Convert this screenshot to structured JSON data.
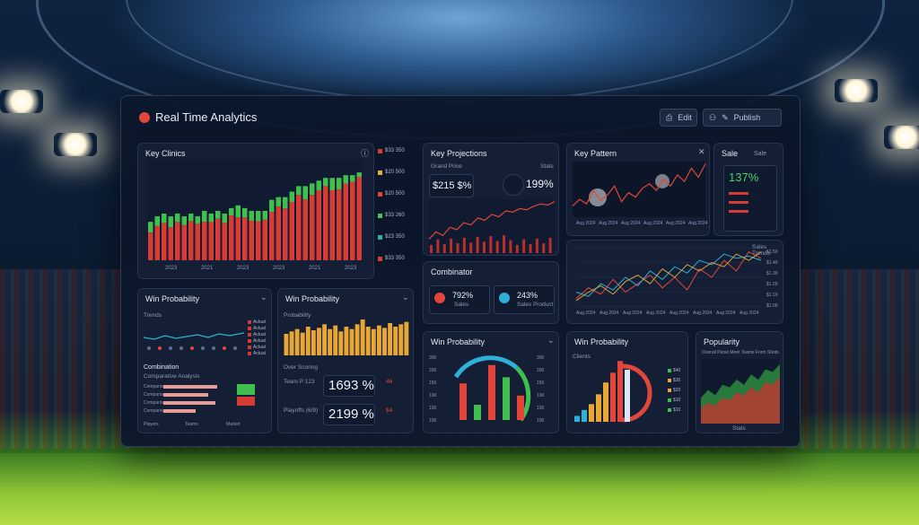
{
  "app": {
    "title": "Real Time Analytics"
  },
  "toolbar": {
    "btn1": "Edit",
    "btn2": "Publish"
  },
  "key_clinics": {
    "title": "Key Clinics",
    "legend": [
      "$33 350",
      "$20 500",
      "$20 500",
      "$33 260",
      "$23 350",
      "$33 350"
    ],
    "legend_colors": [
      "#d63b36",
      "#e2b03a",
      "#e2463a",
      "#48c45a",
      "#2fb0a0",
      "#d63b36"
    ],
    "yticks": [
      "",
      "",
      "",
      "",
      "",
      ""
    ],
    "xticks": [
      "2023",
      "2021",
      "2023",
      "2023",
      "2021",
      "2023"
    ],
    "chart_data": {
      "type": "bar",
      "values": [
        14,
        16,
        17,
        16,
        17,
        16,
        17,
        16,
        18,
        17,
        18,
        17,
        19,
        20,
        19,
        18,
        18,
        18,
        22,
        23,
        23,
        25,
        27,
        27,
        28,
        29,
        30,
        30,
        30,
        31,
        31,
        32
      ],
      "red_share": [
        0.72,
        0.78,
        0.8,
        0.75,
        0.82,
        0.8,
        0.84,
        0.83,
        0.78,
        0.82,
        0.84,
        0.8,
        0.86,
        0.78,
        0.82,
        0.8,
        0.79,
        0.82,
        0.8,
        0.85,
        0.82,
        0.85,
        0.88,
        0.82,
        0.85,
        0.88,
        0.9,
        0.85,
        0.86,
        0.9,
        0.92,
        0.95
      ]
    }
  },
  "projections": {
    "title": "Key Projections",
    "label": "Grand Price",
    "value1": "$215 $%",
    "value2": "199%",
    "tag": "Stats",
    "chart_data": {
      "type": "line",
      "values": [
        12,
        18,
        15,
        22,
        20,
        26,
        24,
        30,
        28,
        33,
        31,
        36,
        35,
        38,
        37,
        40,
        42,
        41,
        44
      ]
    }
  },
  "pattern": {
    "title": "Key Pattern",
    "chart_data": {
      "type": "line",
      "values": [
        10,
        16,
        12,
        24,
        15,
        20,
        28,
        14,
        22,
        18,
        26,
        30,
        24,
        34,
        28,
        38,
        32,
        44,
        36,
        48
      ]
    },
    "xticks": [
      "Aug 2024",
      "Aug 2024",
      "Aug 2024",
      "Aug 2024",
      "Aug 2024",
      "Aug 2024"
    ]
  },
  "sale": {
    "title": "Sale",
    "value": "137%",
    "right": "Sale"
  },
  "combined": {
    "title": "Combined",
    "xticks": [
      "Aug 2024",
      "Aug 2024",
      "Aug 2024",
      "Aug 2024",
      "Aug 2024",
      "Aug 2024",
      "Aug 2024",
      "Aug 2024"
    ],
    "yticks": [
      "$1.50",
      "$1.40",
      "$1.30",
      "$1.20",
      "$1.10",
      "$1.00"
    ],
    "legend": "Sales Trends",
    "chart_data": {
      "type": "line",
      "series": [
        {
          "color": "#e2463a",
          "values": [
            8,
            18,
            12,
            26,
            14,
            22,
            30,
            18,
            28,
            16,
            36,
            28,
            44,
            34,
            52,
            46
          ]
        },
        {
          "color": "#2fb0d8",
          "values": [
            14,
            10,
            22,
            16,
            28,
            20,
            34,
            26,
            38,
            32,
            44,
            40,
            50,
            46,
            48,
            44
          ]
        },
        {
          "color": "#d8a23a",
          "values": [
            6,
            14,
            20,
            12,
            24,
            30,
            22,
            36,
            28,
            40,
            34,
            42,
            38,
            50,
            44,
            52
          ]
        }
      ]
    }
  },
  "combinator": {
    "title": "Combinator",
    "stat1": "792%",
    "stat2": "243%",
    "sub1": "Sales",
    "sub2": "Sales Product"
  },
  "win_prob1": {
    "title": "Win Probability",
    "label": "Trends",
    "section": "Combination",
    "section_sub": "Comparative Analysis",
    "legend": [
      "Actual",
      "Actual",
      "Actual",
      "Actual",
      "Actual",
      "Actual"
    ],
    "bars": [
      "Comparison",
      "Comparison",
      "Comparison",
      "Comparison"
    ],
    "foot": [
      "Players",
      "Teams",
      "Market"
    ]
  },
  "win_prob2": {
    "title": "Win Probability",
    "label": "Probability",
    "stat_label": "Over Scoring",
    "stat1": "1693 %",
    "stat2": "2199 %",
    "row1": "Team P 123",
    "row2": "Playoffs (6/9)",
    "side1": "46",
    "side2": "$4",
    "chart_data": {
      "type": "bar",
      "values": [
        18,
        20,
        22,
        19,
        24,
        21,
        23,
        26,
        22,
        25,
        20,
        24,
        22,
        26,
        30,
        24,
        22,
        25,
        23,
        27,
        24,
        26,
        28
      ]
    }
  },
  "win_prob3": {
    "title": "Win Probability",
    "yticks": [
      "300",
      "200",
      "150",
      "100",
      "100",
      "100"
    ],
    "chart_data": {
      "type": "bar",
      "values": [
        60,
        25,
        90,
        70,
        40
      ]
    }
  },
  "win_prob4": {
    "title": "Win Probability",
    "label": "Clients",
    "legend": [
      "$40",
      "$30",
      "$20",
      "$10",
      "$10"
    ],
    "chart_data": {
      "type": "bar",
      "values": [
        6,
        12,
        18,
        28,
        40,
        50,
        62
      ]
    }
  },
  "popularity": {
    "title": "Popularity",
    "header": "Overall Panel Meet Teams Form Shots",
    "foot": "Stats",
    "chart_data": {
      "type": "area",
      "series": [
        {
          "color": "#2e8a3e",
          "values": [
            20,
            26,
            22,
            30,
            28,
            34,
            30,
            38,
            34,
            42,
            40,
            46
          ]
        },
        {
          "color": "#b83a30",
          "values": [
            12,
            16,
            14,
            20,
            18,
            24,
            22,
            28,
            24,
            32,
            30,
            36
          ]
        }
      ]
    }
  }
}
